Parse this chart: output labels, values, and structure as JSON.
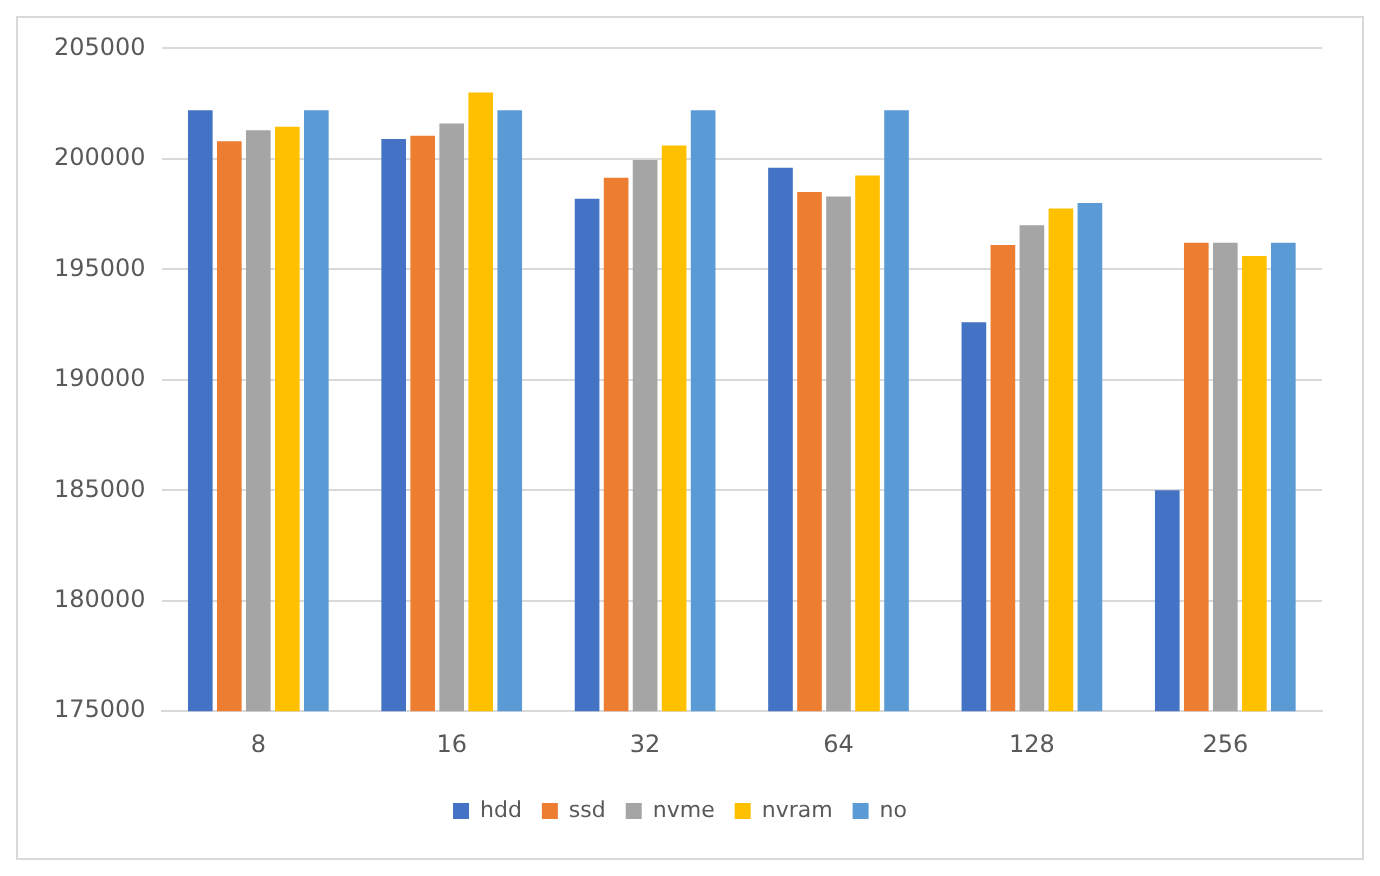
{
  "chart_data": {
    "type": "bar",
    "categories": [
      "8",
      "16",
      "32",
      "64",
      "128",
      "256"
    ],
    "series": [
      {
        "name": "hdd",
        "color": "#4472c4",
        "values": [
          202200,
          200900,
          198200,
          199600,
          192600,
          185000
        ]
      },
      {
        "name": "ssd",
        "color": "#ed7d31",
        "values": [
          200800,
          201050,
          199150,
          198500,
          196100,
          196200
        ]
      },
      {
        "name": "nvme",
        "color": "#a5a5a5",
        "values": [
          201300,
          201600,
          199950,
          198300,
          197000,
          196200
        ]
      },
      {
        "name": "nvram",
        "color": "#ffc000",
        "values": [
          201450,
          203000,
          200600,
          199250,
          197750,
          195600
        ]
      },
      {
        "name": "no",
        "color": "#5b9bd5",
        "values": [
          202200,
          202200,
          202200,
          202200,
          198000,
          196200
        ]
      }
    ],
    "ylim": [
      175000,
      205000
    ],
    "yticks": [
      175000,
      180000,
      185000,
      190000,
      195000,
      200000,
      205000
    ],
    "grid": "y",
    "legend": "bottom"
  }
}
